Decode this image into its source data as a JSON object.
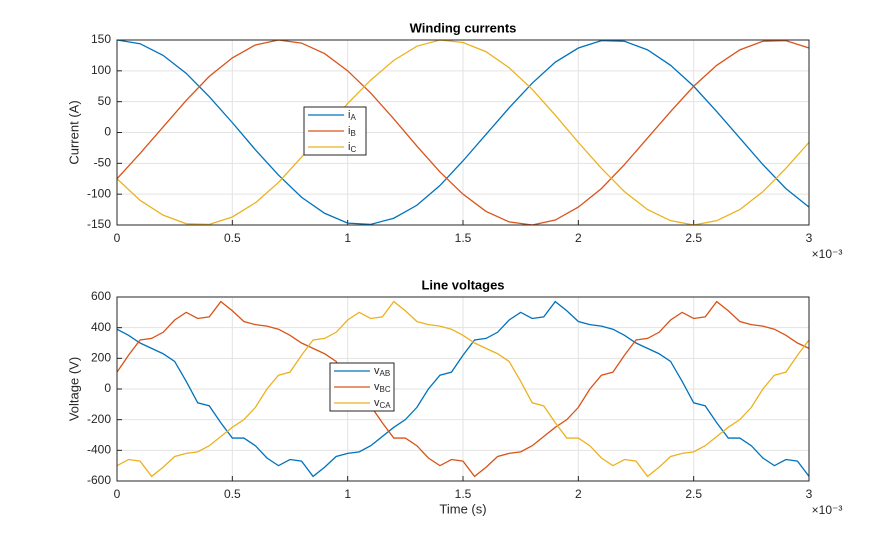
{
  "chart_data": [
    {
      "type": "line",
      "title": "Winding currents",
      "ylabel": "Current (A)",
      "x_multiplier": "×10⁻³",
      "x": [
        0,
        0.1,
        0.2,
        0.3,
        0.4,
        0.5,
        0.6,
        0.7,
        0.8,
        0.9,
        1,
        1.1,
        1.2,
        1.3,
        1.4,
        1.5,
        1.6,
        1.7,
        1.8,
        1.9,
        2,
        2.1,
        2.2,
        2.3,
        2.4,
        2.5,
        2.6,
        2.7,
        2.8,
        2.9,
        3
      ],
      "xlim": [
        0,
        3
      ],
      "xticks": [
        0,
        0.5,
        1,
        1.5,
        2,
        2.5,
        3
      ],
      "ylim": [
        -150,
        150
      ],
      "yticks": [
        -150,
        -100,
        -50,
        0,
        50,
        100,
        150
      ],
      "grid": true,
      "series": [
        {
          "name": "iA",
          "color": "#0072BD",
          "values": [
            150,
            144,
            125,
            96,
            58,
            16,
            -28,
            -69,
            -105,
            -131,
            -147,
            -149,
            -139,
            -118,
            -86,
            -46,
            -3,
            40,
            80,
            114,
            137,
            149,
            148,
            134,
            109,
            75,
            34,
            -9,
            -52,
            -91,
            -121
          ]
        },
        {
          "name": "iB",
          "color": "#D95319",
          "values": [
            -75,
            -34,
            9,
            52,
            91,
            121,
            142,
            150,
            145,
            128,
            100,
            64,
            22,
            -22,
            -64,
            -100,
            -128,
            -145,
            -150,
            -142,
            -121,
            -91,
            -52,
            -9,
            34,
            75,
            109,
            134,
            148,
            149,
            137
          ]
        },
        {
          "name": "iC",
          "color": "#EDB120",
          "values": [
            -75,
            -110,
            -134,
            -148,
            -149,
            -137,
            -114,
            -81,
            -40,
            3,
            47,
            85,
            117,
            140,
            150,
            146,
            131,
            105,
            70,
            28,
            -16,
            -58,
            -96,
            -125,
            -143,
            -150,
            -143,
            -125,
            -96,
            -58,
            -16
          ]
        }
      ]
    },
    {
      "type": "line",
      "title": "Line voltages",
      "ylabel": "Voltage (V)",
      "xlabel": "Time (s)",
      "x_multiplier": "×10⁻³",
      "x": [
        0,
        0.05,
        0.1,
        0.15,
        0.2,
        0.25,
        0.3,
        0.35,
        0.4,
        0.45,
        0.5,
        0.55,
        0.6,
        0.65,
        0.7,
        0.75,
        0.8,
        0.85,
        0.9,
        0.95,
        1,
        1.05,
        1.1,
        1.15,
        1.2,
        1.25,
        1.3,
        1.35,
        1.4,
        1.45,
        1.5,
        1.55,
        1.6,
        1.65,
        1.7,
        1.75,
        1.8,
        1.85,
        1.9,
        1.95,
        2,
        2.05,
        2.1,
        2.15,
        2.2,
        2.25,
        2.3,
        2.35,
        2.4,
        2.45,
        2.5,
        2.55,
        2.6,
        2.65,
        2.7,
        2.75,
        2.8,
        2.85,
        2.9,
        2.95,
        3
      ],
      "xlim": [
        0,
        3
      ],
      "xticks": [
        0,
        0.5,
        1,
        1.5,
        2,
        2.5,
        3
      ],
      "ylim": [
        -600,
        600
      ],
      "yticks": [
        -600,
        -400,
        -200,
        0,
        200,
        400,
        600
      ],
      "grid": true,
      "series": [
        {
          "name": "vAB",
          "color": "#0072BD",
          "values": [
            390,
            350,
            300,
            265,
            230,
            180,
            50,
            -90,
            -110,
            -220,
            -320,
            -320,
            -370,
            -450,
            -500,
            -460,
            -470,
            -570,
            -510,
            -440,
            -420,
            -410,
            -370,
            -310,
            -250,
            -200,
            -120,
            0,
            90,
            110,
            220,
            320,
            330,
            370,
            450,
            500,
            460,
            470,
            570,
            510,
            440,
            420,
            410,
            390,
            350,
            300,
            265,
            230,
            180,
            50,
            -90,
            -110,
            -220,
            -320,
            -320,
            -370,
            -450,
            -500,
            -460,
            -470,
            -570
          ]
        },
        {
          "name": "vBC",
          "color": "#D95319",
          "values": [
            110,
            220,
            320,
            330,
            370,
            450,
            500,
            460,
            470,
            570,
            510,
            440,
            420,
            410,
            390,
            350,
            300,
            265,
            230,
            180,
            50,
            -90,
            -110,
            -220,
            -320,
            -320,
            -370,
            -450,
            -500,
            -460,
            -470,
            -570,
            -510,
            -440,
            -420,
            -410,
            -370,
            -310,
            -250,
            -200,
            -120,
            0,
            90,
            110,
            220,
            320,
            330,
            370,
            450,
            500,
            460,
            470,
            570,
            510,
            440,
            420,
            410,
            390,
            350,
            300,
            265
          ]
        },
        {
          "name": "vCA",
          "color": "#EDB120",
          "values": [
            -500,
            -460,
            -470,
            -570,
            -510,
            -440,
            -420,
            -410,
            -370,
            -310,
            -250,
            -200,
            -120,
            0,
            90,
            110,
            220,
            320,
            330,
            370,
            450,
            500,
            460,
            470,
            570,
            510,
            440,
            420,
            410,
            390,
            350,
            300,
            265,
            230,
            180,
            50,
            -90,
            -110,
            -220,
            -320,
            -320,
            -370,
            -450,
            -500,
            -460,
            -470,
            -570,
            -510,
            -440,
            -420,
            -410,
            -370,
            -310,
            -250,
            -200,
            -120,
            0,
            90,
            110,
            220,
            320
          ]
        }
      ]
    }
  ]
}
